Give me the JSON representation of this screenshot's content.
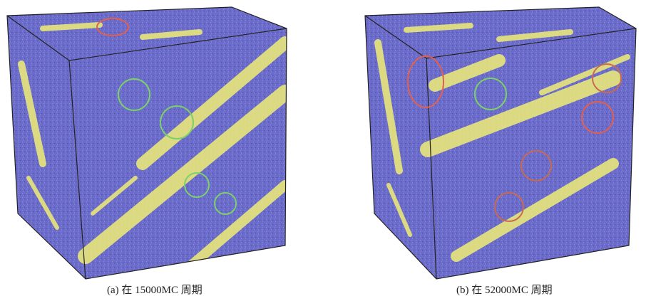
{
  "panels": [
    {
      "caption": "(a) 在 15000MC 周期"
    },
    {
      "caption": "(b) 在 52000MC 周期"
    }
  ]
}
